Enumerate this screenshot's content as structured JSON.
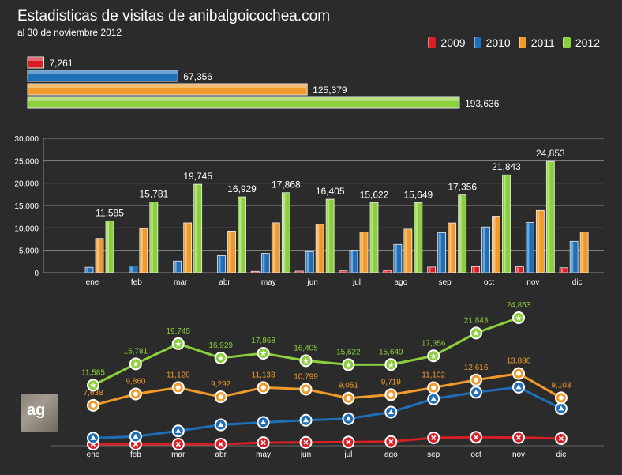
{
  "header": {
    "title": "Estadisticas de visitas de anibalgoicochea.com",
    "subtitle": "al 30 de noviembre 2012"
  },
  "logo": {
    "text": "ag"
  },
  "colors": {
    "2009": "#d81f26",
    "2010": "#1f6fb8",
    "2011": "#f09a2a",
    "2012": "#8ccf3c"
  },
  "legend": [
    {
      "label": "2009",
      "color": "#d81f26"
    },
    {
      "label": "2010",
      "color": "#1f6fb8"
    },
    {
      "label": "2011",
      "color": "#f09a2a"
    },
    {
      "label": "2012",
      "color": "#8ccf3c"
    }
  ],
  "chart_data": [
    {
      "type": "bar",
      "orientation": "horizontal",
      "title": "",
      "categories": [
        "2009",
        "2010",
        "2011",
        "2012"
      ],
      "values": [
        7261,
        67356,
        125379,
        193636
      ],
      "labels": [
        "7,261",
        "67,356",
        "125,379",
        "193,636"
      ]
    },
    {
      "type": "bar",
      "title": "",
      "categories": [
        "ene",
        "feb",
        "mar",
        "abr",
        "may",
        "jun",
        "jul",
        "ago",
        "sep",
        "oct",
        "nov",
        "dic"
      ],
      "ylim": [
        0,
        30000
      ],
      "yticks": [
        0,
        5000,
        10000,
        15000,
        20000,
        25000,
        30000
      ],
      "ytick_labels": [
        "0",
        "5,000",
        "10,000",
        "15,000",
        "20,000",
        "25,000",
        "30,000"
      ],
      "series": [
        {
          "name": "2009",
          "values": [
            0,
            0,
            0,
            0,
            300,
            350,
            400,
            500,
            1250,
            1350,
            1300,
            1100
          ]
        },
        {
          "name": "2010",
          "values": [
            1200,
            1500,
            2600,
            3800,
            4300,
            4700,
            5000,
            6300,
            8900,
            10200,
            11200,
            7000
          ]
        },
        {
          "name": "2011",
          "values": [
            7638,
            9860,
            11120,
            9292,
            11133,
            10799,
            9051,
            9719,
            11102,
            12616,
            13886,
            9103
          ]
        },
        {
          "name": "2012",
          "values": [
            11585,
            15781,
            19745,
            16929,
            17868,
            16405,
            15622,
            15649,
            17356,
            21843,
            24853,
            null
          ]
        }
      ],
      "data_labels_2012": [
        "11,585",
        "15,781",
        "19,745",
        "16,929",
        "17,868",
        "16,405",
        "15,622",
        "15,649",
        "17,356",
        "21,843",
        "24,853",
        ""
      ]
    },
    {
      "type": "line",
      "title": "",
      "categories": [
        "ene",
        "feb",
        "mar",
        "abr",
        "may",
        "jun",
        "jul",
        "ago",
        "sep",
        "oct",
        "nov",
        "dic"
      ],
      "series": [
        {
          "name": "2009",
          "values": [
            0,
            0,
            0,
            0,
            300,
            350,
            400,
            500,
            1250,
            1350,
            1300,
            1100
          ]
        },
        {
          "name": "2010",
          "values": [
            1200,
            1500,
            2600,
            3800,
            4300,
            4700,
            5000,
            6300,
            8900,
            10200,
            11200,
            7000
          ]
        },
        {
          "name": "2011",
          "values": [
            7638,
            9860,
            11120,
            9292,
            11133,
            10799,
            9051,
            9719,
            11102,
            12616,
            13886,
            9103
          ],
          "labels": [
            "7,638",
            "9,860",
            "11,120",
            "9,292",
            "11,133",
            "10,799",
            "9,051",
            "9,719",
            "11,102",
            "12,616",
            "13,886",
            "9,103"
          ]
        },
        {
          "name": "2012",
          "values": [
            11585,
            15781,
            19745,
            16929,
            17868,
            16405,
            15622,
            15649,
            17356,
            21843,
            24853,
            null
          ],
          "labels": [
            "11,585",
            "15,781",
            "19,745",
            "16,929",
            "17,868",
            "16,405",
            "15,622",
            "15,649",
            "17,356",
            "21,843",
            "24,853",
            ""
          ]
        }
      ]
    }
  ]
}
